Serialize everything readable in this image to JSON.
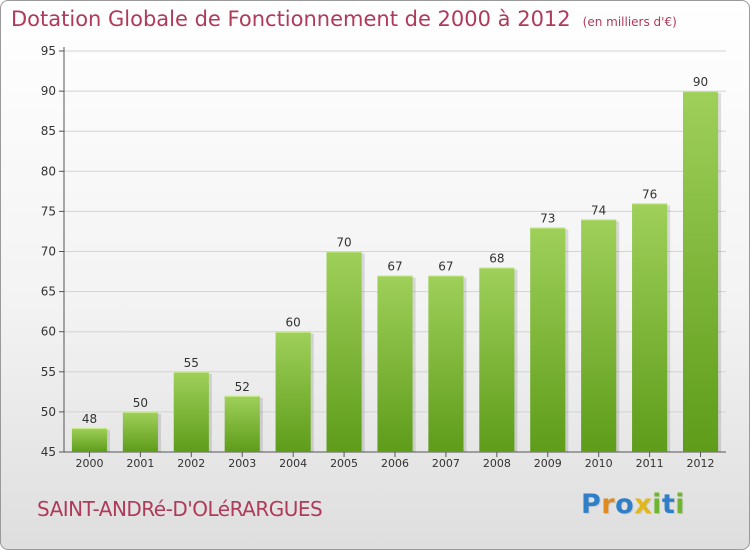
{
  "title": {
    "main": "Dotation Globale de Fonctionnement de 2000 à 2012",
    "unit": "(en milliers d'€)"
  },
  "commune": "SAINT-ANDRé-D'OLéRARGUES",
  "logo": {
    "letters": [
      {
        "char": "P",
        "color": "#2f7fc8"
      },
      {
        "char": "r",
        "color": "#e08a1e"
      },
      {
        "char": "o",
        "color": "#2f7fc8"
      },
      {
        "char": "x",
        "color": "#e0b81e"
      },
      {
        "char": "i",
        "color": "#6fb530"
      },
      {
        "char": "t",
        "color": "#2f7fc8"
      },
      {
        "char": "i",
        "color": "#6fb530"
      }
    ]
  },
  "colors": {
    "title": "#b03a5a",
    "bar_top": "#9fd05a",
    "bar_bottom": "#5e9c1a",
    "axis": "#555555",
    "grid": "#d4d4d4"
  },
  "chart_data": {
    "type": "bar",
    "categories": [
      "2000",
      "2001",
      "2002",
      "2003",
      "2004",
      "2005",
      "2006",
      "2007",
      "2008",
      "2009",
      "2010",
      "2011",
      "2012"
    ],
    "values": [
      48,
      50,
      55,
      52,
      60,
      70,
      67,
      67,
      68,
      73,
      74,
      76,
      90
    ],
    "data_labels": [
      "48",
      "50",
      "55",
      "52",
      "60",
      "70",
      "67",
      "67",
      "68",
      "73",
      "74",
      "76",
      "90"
    ],
    "title": "Dotation Globale de Fonctionnement de 2000 à 2012",
    "ylim": [
      45,
      95
    ],
    "yticks": [
      45,
      50,
      55,
      60,
      65,
      70,
      75,
      80,
      85,
      90,
      95
    ],
    "ytick_labels": [
      "45",
      "50",
      "55",
      "60",
      "65",
      "70",
      "75",
      "80",
      "85",
      "90",
      "95"
    ],
    "grid": true
  }
}
